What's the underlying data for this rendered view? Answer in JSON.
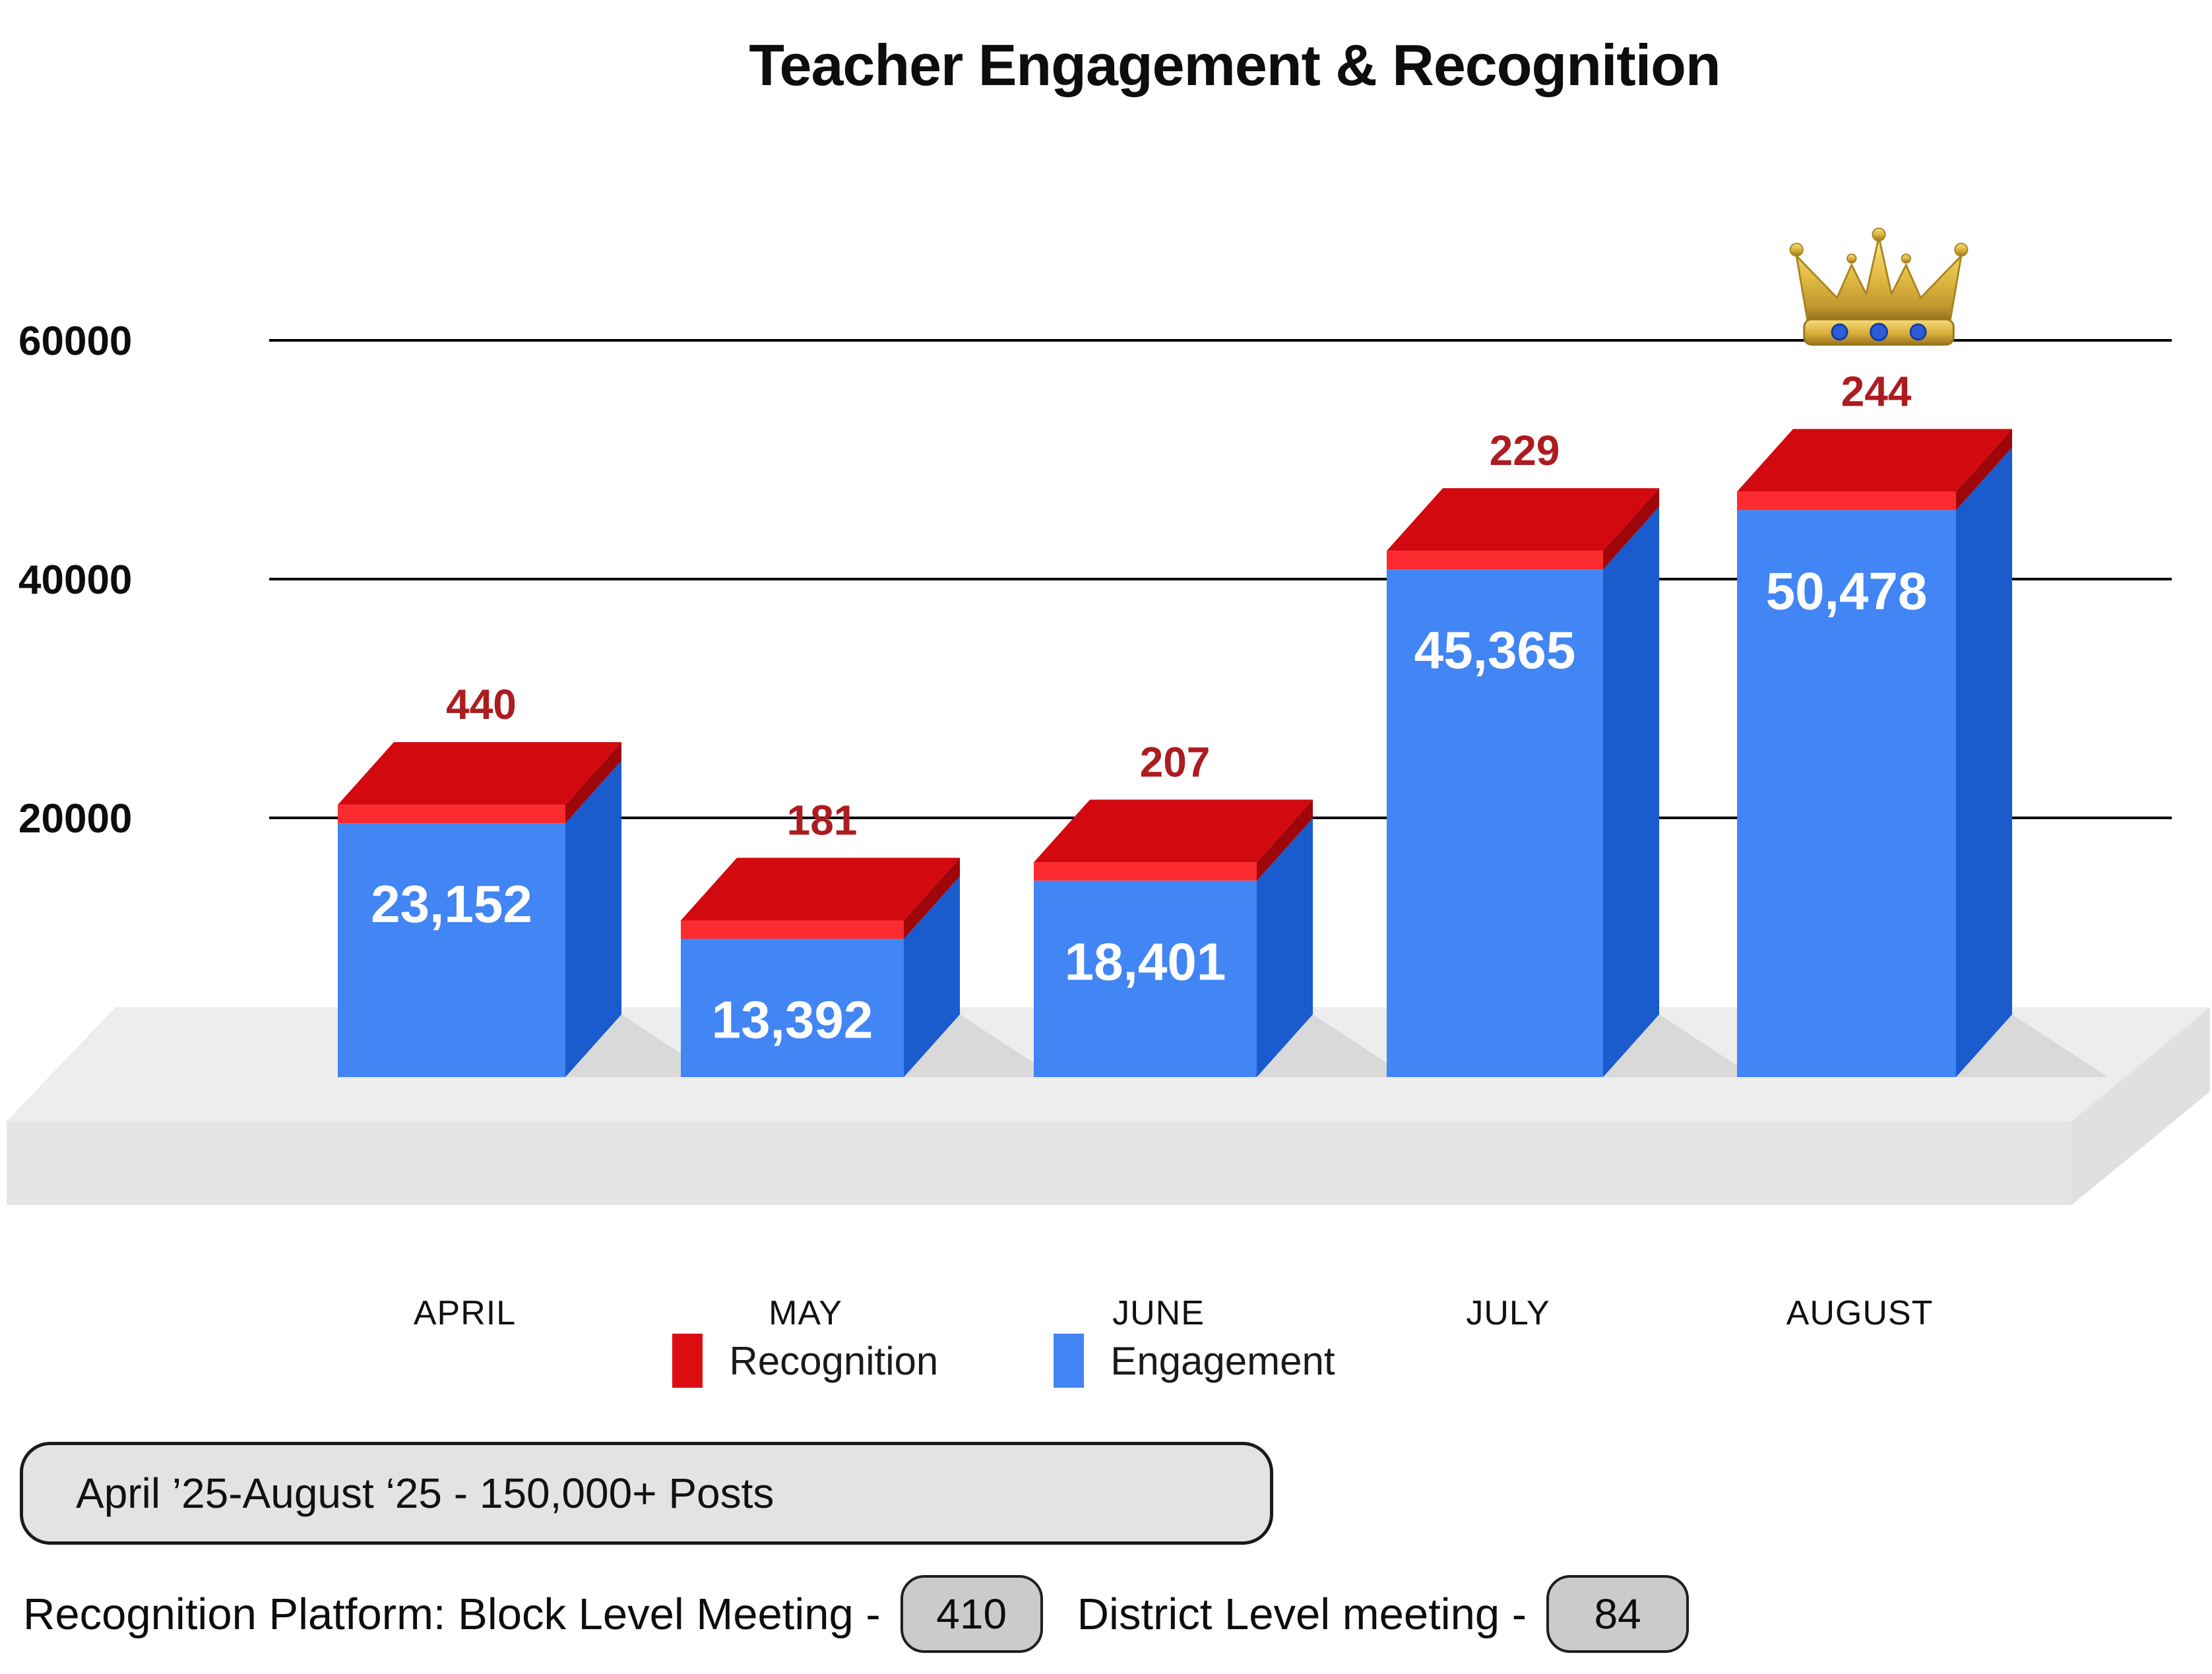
{
  "title": "Teacher Engagement & Recognition",
  "chart_data": {
    "type": "bar",
    "variant": "3d-stacked",
    "title": "Teacher Engagement & Recognition",
    "categories": [
      "APRIL",
      "MAY",
      "JUNE",
      "JULY",
      "AUGUST"
    ],
    "series": [
      {
        "name": "Engagement",
        "color": "#4285F4",
        "values": [
          23152,
          13392,
          18401,
          45365,
          50478
        ],
        "labels": [
          "23,152",
          "13,392",
          "18,401",
          "45,365",
          "50,478"
        ]
      },
      {
        "name": "Recognition",
        "color": "#DC0E12",
        "values": [
          440,
          181,
          207,
          229,
          244
        ],
        "labels": [
          "440",
          "181",
          "207",
          "229",
          "244"
        ]
      }
    ],
    "ylim": [
      0,
      60000
    ],
    "yticks": [
      {
        "value": 20000,
        "label": "20000"
      },
      {
        "value": 40000,
        "label": "40000"
      },
      {
        "value": 60000,
        "label": "60000"
      }
    ],
    "grid": true,
    "legend_position": "bottom",
    "annotations": {
      "crown_icon_over": "AUGUST"
    }
  },
  "legend": {
    "items": [
      {
        "label": "Recognition",
        "color": "#DC0E12"
      },
      {
        "label": "Engagement",
        "color": "#4285F4"
      }
    ]
  },
  "footer": {
    "period_box": "April ’25-August ‘25 - 150,000+ Posts",
    "platform_line": {
      "label_block": "Recognition Platform: Block Level Meeting -",
      "block_value": "410",
      "label_district": "District Level meeting -",
      "district_value": "84"
    }
  },
  "colors": {
    "engagement_front": "#4285F4",
    "engagement_side": "#1A5BCD",
    "recognition_front": "#FB2B30",
    "recognition_top": "#D20A0F",
    "recognition_side": "#9E0609",
    "count_label": "#AD1C1F",
    "value_label": "#FFFFFF",
    "grid": "#000000",
    "axis_label": "#0d0d0d",
    "month_label": "#111111",
    "platform_top": "#EDEDED",
    "platform_front": "#E5E5E5",
    "platform_side": "#E0E0E0",
    "shadow": "#D9D9D9",
    "crown_gold_light": "#F9E48C",
    "crown_gold": "#E3BC45",
    "crown_gold_dark": "#8A6A18",
    "crown_gem": "#2E5BD7"
  }
}
